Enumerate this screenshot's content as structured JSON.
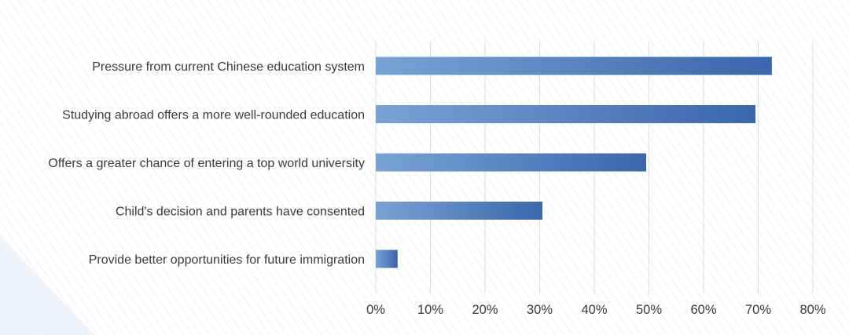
{
  "chart_data": {
    "type": "bar",
    "orientation": "horizontal",
    "categories": [
      "Pressure from current Chinese education system",
      "Studying abroad offers a more well-rounded education",
      "Offers a greater chance of entering a top world university",
      "Child's decision and parents have consented",
      "Provide better opportunities for future immigration"
    ],
    "values": [
      72.5,
      69.5,
      49.5,
      30.5,
      4
    ],
    "x_ticks": [
      "0%",
      "10%",
      "20%",
      "30%",
      "40%",
      "50%",
      "60%",
      "70%",
      "80%"
    ],
    "xlim": [
      0,
      80
    ],
    "title": "",
    "xlabel": "",
    "ylabel": "",
    "grid": true,
    "colors": {
      "bar_start": "#78a3d6",
      "bar_end": "#3a66ac",
      "grid": "#d9dde4",
      "text": "#3a3a3a"
    }
  }
}
